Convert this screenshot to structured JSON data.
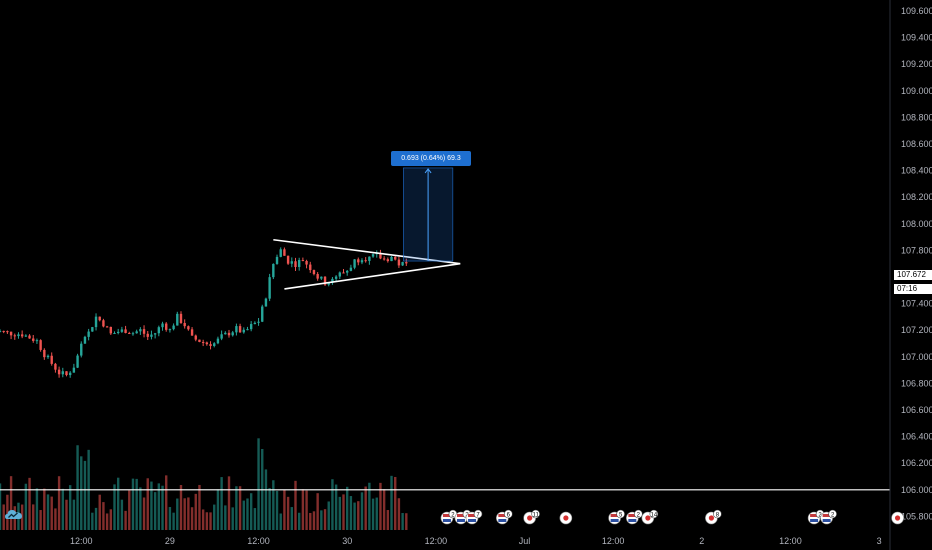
{
  "chart_data": {
    "type": "candlestick",
    "symbol_pattern": "symmetrical-triangle",
    "y_ticks": [
      "109.600",
      "109.400",
      "109.200",
      "109.000",
      "108.800",
      "108.600",
      "108.400",
      "108.200",
      "108.000",
      "107.800",
      "107.600",
      "107.400",
      "107.200",
      "107.000",
      "106.800",
      "106.600",
      "106.400",
      "106.200",
      "106.000",
      "105.800"
    ],
    "ylim": [
      105.75,
      109.8
    ],
    "x_ticks": [
      {
        "label": "12:00",
        "t": 12
      },
      {
        "label": "29",
        "t": 24
      },
      {
        "label": "12:00",
        "t": 36
      },
      {
        "label": "30",
        "t": 48
      },
      {
        "label": "12:00",
        "t": 60
      },
      {
        "label": "Jul",
        "t": 72
      },
      {
        "label": "12:00",
        "t": 84
      },
      {
        "label": "2",
        "t": 96
      },
      {
        "label": "12:00",
        "t": 108
      },
      {
        "label": "3",
        "t": 120
      }
    ],
    "xlim": [
      1.0,
      120.8
    ],
    "current_price": "107.672",
    "countdown": "07:16",
    "measure": {
      "label": "0.693 (0.64%) 69.3",
      "from_price": 107.72,
      "to_price": 108.42,
      "from_t": 55.6,
      "to_t": 62.3
    },
    "horizontal_line_price": 106.0,
    "triangle": {
      "upper": [
        [
          38.0,
          107.88
        ],
        [
          63.3,
          107.7
        ]
      ],
      "lower": [
        [
          39.5,
          107.51
        ],
        [
          63.3,
          107.7
        ]
      ]
    },
    "price_path": [
      [
        0,
        107.2
      ],
      [
        2,
        107.18
      ],
      [
        4,
        107.17
      ],
      [
        6,
        107.12
      ],
      [
        7,
        107.02
      ],
      [
        8,
        106.95
      ],
      [
        9,
        106.88
      ],
      [
        10,
        106.86
      ],
      [
        11,
        106.93
      ],
      [
        12,
        107.08
      ],
      [
        13,
        107.18
      ],
      [
        14,
        107.3
      ],
      [
        15,
        107.25
      ],
      [
        16,
        107.17
      ],
      [
        17,
        107.19
      ],
      [
        18,
        107.2
      ],
      [
        19,
        107.18
      ],
      [
        20,
        107.2
      ],
      [
        21,
        107.15
      ],
      [
        22,
        107.18
      ],
      [
        23,
        107.25
      ],
      [
        24,
        107.2
      ],
      [
        25,
        107.3
      ],
      [
        26,
        107.24
      ],
      [
        27,
        107.14
      ],
      [
        28,
        107.12
      ],
      [
        29,
        107.1
      ],
      [
        30,
        107.1
      ],
      [
        31,
        107.15
      ],
      [
        32,
        107.18
      ],
      [
        33,
        107.21
      ],
      [
        34,
        107.18
      ],
      [
        35,
        107.23
      ],
      [
        36,
        107.27
      ],
      [
        37,
        107.45
      ],
      [
        38,
        107.7
      ],
      [
        39,
        107.8
      ],
      [
        40,
        107.72
      ],
      [
        41,
        107.7
      ],
      [
        42,
        107.73
      ],
      [
        43,
        107.67
      ],
      [
        44,
        107.6
      ],
      [
        45,
        107.56
      ],
      [
        46,
        107.57
      ],
      [
        47,
        107.62
      ],
      [
        48,
        107.65
      ],
      [
        49,
        107.72
      ],
      [
        50,
        107.75
      ],
      [
        51,
        107.74
      ],
      [
        52,
        107.76
      ],
      [
        53,
        107.73
      ],
      [
        54,
        107.75
      ],
      [
        55,
        107.7
      ],
      [
        56,
        107.69
      ]
    ],
    "volume_series": "per-bar; teal=up, red=down",
    "volume_max": 1.0,
    "up_color": "#26a69a",
    "down_color": "#ef5350",
    "event_markers": [
      {
        "t": 61.5,
        "flag": "us",
        "count": "2"
      },
      {
        "t": 63.4,
        "flag": "us",
        "count": "2"
      },
      {
        "t": 64.9,
        "flag": "us",
        "count": "7"
      },
      {
        "t": 69.0,
        "flag": "us",
        "count": "6"
      },
      {
        "t": 72.7,
        "flag": "jp",
        "count": "11"
      },
      {
        "t": 77.6,
        "flag": "jp",
        "count": ""
      },
      {
        "t": 84.2,
        "flag": "us",
        "count": "5"
      },
      {
        "t": 86.6,
        "flag": "us",
        "count": "2"
      },
      {
        "t": 88.7,
        "flag": "jp",
        "count": "14"
      },
      {
        "t": 97.3,
        "flag": "jp",
        "count": "8"
      },
      {
        "t": 111.2,
        "flag": "us",
        "count": "2"
      },
      {
        "t": 112.9,
        "flag": "us",
        "count": "2"
      },
      {
        "t": 122.5,
        "flag": "jp",
        "count": ""
      }
    ]
  }
}
